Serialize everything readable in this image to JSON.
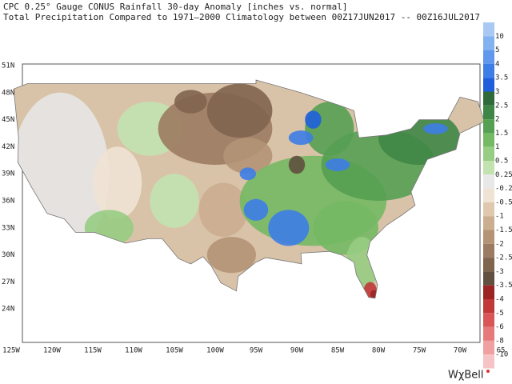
{
  "header": {
    "title": "CPC 0.25° Gauge CONUS Rainfall 30-day Anomaly [inches vs. normal]",
    "subtitle": "Total Precipitation Compared to 1971–2000 Climatology between 00Z17JUN2017 -- 00Z16JUL2017"
  },
  "map": {
    "lat_labels": [
      "51N",
      "48N",
      "45N",
      "42N",
      "39N",
      "36N",
      "33N",
      "30N",
      "27N",
      "24N"
    ],
    "lon_labels": [
      "125W",
      "120W",
      "115W",
      "110W",
      "105W",
      "100W",
      "95W",
      "90W",
      "85W",
      "80W",
      "75W",
      "70W",
      "65"
    ]
  },
  "legend": {
    "colors": [
      "#a9c9f2",
      "#82b2f0",
      "#5f98ec",
      "#3d7de6",
      "#1f5fdc",
      "#2f6a3a",
      "#3f8646",
      "#55a052",
      "#74b964",
      "#97cd83",
      "#c2e3b0",
      "#e8e8e8",
      "#efe3d4",
      "#e0c8ae",
      "#cbae90",
      "#b49376",
      "#9b7b61",
      "#7f644e",
      "#61503f",
      "#9c2424",
      "#c03838",
      "#d85656",
      "#e67a7a",
      "#f0a0a0",
      "#f6c4c4"
    ],
    "labels": [
      "10",
      "5",
      "4",
      "3.5",
      "3",
      "2.5",
      "2",
      "1.5",
      "1",
      "0.5",
      "0.25",
      "-0.2",
      "-0.5",
      "-1",
      "-1.5",
      "-2",
      "-2.5",
      "-3",
      "-3.5",
      "-4",
      "-5",
      "-6",
      "-8",
      "-10"
    ]
  },
  "branding": "WχBell"
}
